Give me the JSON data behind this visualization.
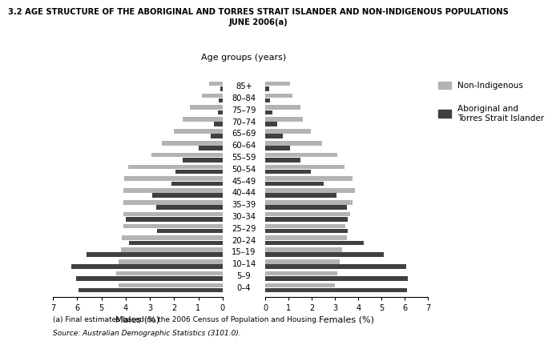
{
  "title_line1": "3.2 AGE STRUCTURE OF THE ABORIGINAL AND TORRES STRAIT ISLANDER AND NON-INDIGENOUS POPULATIONS",
  "title_line2": "JUNE 2006(a)",
  "age_groups": [
    "0–4",
    "5–9",
    "10–14",
    "15–19",
    "20–24",
    "25–29",
    "30–34",
    "35–39",
    "40–44",
    "45–49",
    "50–54",
    "55–59",
    "60–64",
    "65–69",
    "70–74",
    "75–79",
    "80–84",
    "85+"
  ],
  "male_nonindigenous": [
    4.3,
    4.4,
    4.3,
    4.2,
    4.15,
    4.1,
    4.1,
    4.1,
    4.1,
    4.05,
    3.9,
    2.95,
    2.5,
    2.0,
    1.65,
    1.35,
    0.85,
    0.55
  ],
  "male_indigenous": [
    5.95,
    6.05,
    6.25,
    5.6,
    3.85,
    2.7,
    4.0,
    2.75,
    2.9,
    2.1,
    1.95,
    1.65,
    1.0,
    0.5,
    0.35,
    0.2,
    0.15,
    0.1
  ],
  "female_nonindigenous": [
    3.0,
    3.1,
    3.2,
    3.3,
    3.5,
    3.45,
    3.65,
    3.75,
    3.85,
    3.75,
    3.4,
    3.1,
    2.45,
    1.95,
    1.6,
    1.5,
    1.15,
    1.05
  ],
  "female_indigenous": [
    6.1,
    6.15,
    6.05,
    5.1,
    4.25,
    3.55,
    3.55,
    3.5,
    3.05,
    2.5,
    1.95,
    1.5,
    1.05,
    0.75,
    0.5,
    0.3,
    0.2,
    0.15
  ],
  "color_nonindigenous": "#b3b3b3",
  "color_indigenous": "#404040",
  "xlabel_left": "Males (%)",
  "xlabel_right": "Females (%)",
  "age_label": "Age groups (years)",
  "legend_nonindigenous": "Non-Indigenous",
  "legend_indigenous": "Aboriginal and\nTorres Strait Islander",
  "footnote1": "(a) Final estimates based on the 2006 Census of Population and Housing.",
  "footnote2": "Source: Australian Demographic Statistics (3101.0).",
  "xlim": 7,
  "background": "#ffffff"
}
